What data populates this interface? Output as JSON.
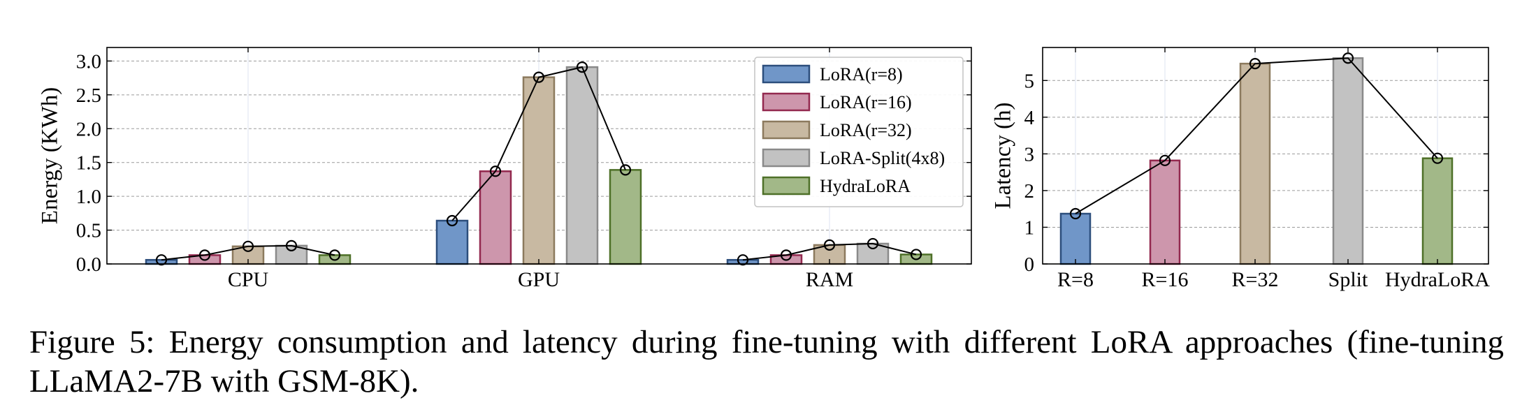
{
  "colors": {
    "series_fill": [
      "#7096c8",
      "#cd96ac",
      "#c8b9a2",
      "#c2c2c2",
      "#a2b888"
    ],
    "series_edge": [
      "#2c4e7c",
      "#93294f",
      "#8c7a5e",
      "#8a8a8a",
      "#4e7028"
    ],
    "grid": "#9a9a9a"
  },
  "caption": "Figure 5: Energy consumption and latency during fine-tuning with different LoRA approaches (fine-tuning LLaMA2-7B with GSM-8K).",
  "chart_data": [
    {
      "type": "bar",
      "title": "",
      "xlabel": "",
      "ylabel": "Energy (KWh)",
      "ylim": [
        0,
        3.2
      ],
      "yticks": [
        0.0,
        0.5,
        1.0,
        1.5,
        2.0,
        2.5,
        3.0
      ],
      "ytick_labels": [
        "0.0",
        "0.5",
        "1.0",
        "1.5",
        "2.0",
        "2.5",
        "3.0"
      ],
      "categories": [
        "CPU",
        "GPU",
        "RAM"
      ],
      "grid": true,
      "legend_position": "top-right",
      "overlay_line": "per-category line with circle markers joining bar tops",
      "series": [
        {
          "name": "LoRA(r=8)",
          "values": [
            0.06,
            0.64,
            0.06
          ]
        },
        {
          "name": "LoRA(r=16)",
          "values": [
            0.13,
            1.37,
            0.13
          ]
        },
        {
          "name": "LoRA(r=32)",
          "values": [
            0.26,
            2.76,
            0.28
          ]
        },
        {
          "name": "LoRA-Split(4x8)",
          "values": [
            0.27,
            2.91,
            0.3
          ]
        },
        {
          "name": "HydraLoRA",
          "values": [
            0.13,
            1.39,
            0.14
          ]
        }
      ]
    },
    {
      "type": "bar",
      "title": "",
      "xlabel": "",
      "ylabel": "Latency (h)",
      "ylim": [
        0,
        5.9
      ],
      "yticks": [
        0,
        1,
        2,
        3,
        4,
        5
      ],
      "ytick_labels": [
        "0",
        "1",
        "2",
        "3",
        "4",
        "5"
      ],
      "categories": [
        "R=8",
        "R=16",
        "R=32",
        "Split",
        "HydraLoRA"
      ],
      "grid": true,
      "overlay_line": "line with circle markers joining bar tops",
      "values": [
        1.37,
        2.82,
        5.46,
        5.61,
        2.88
      ]
    }
  ]
}
